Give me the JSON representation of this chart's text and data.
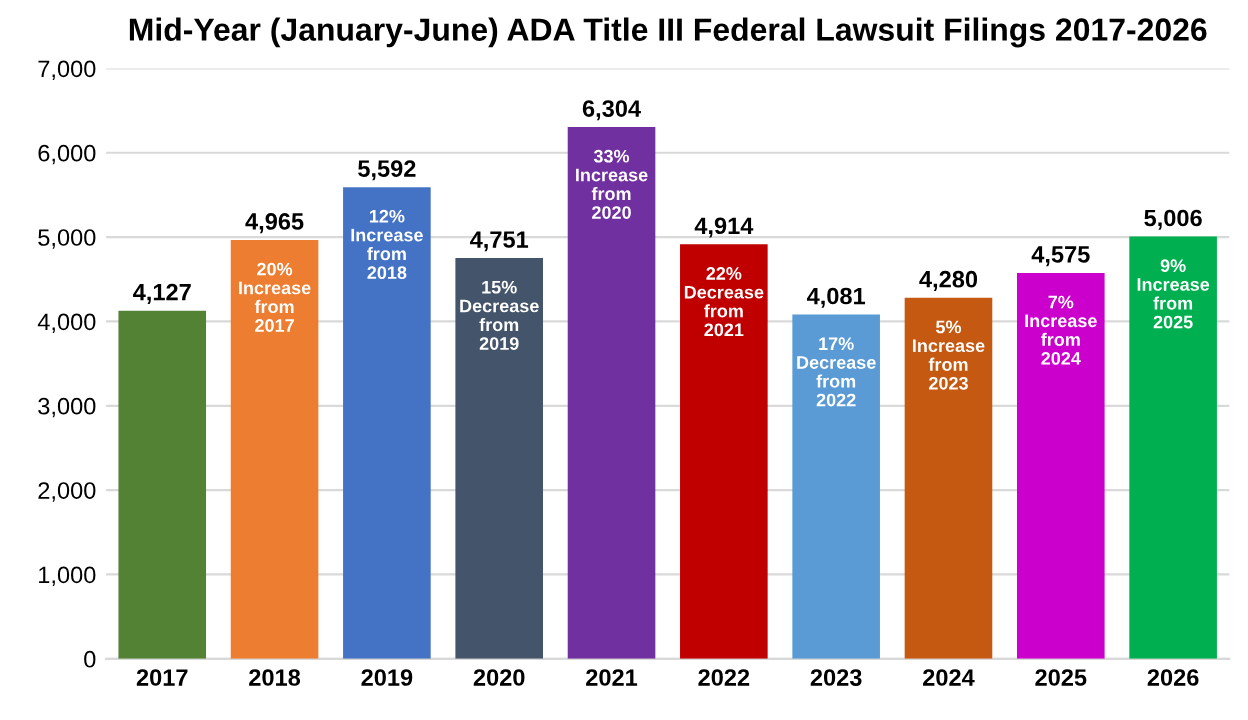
{
  "chart_data": {
    "type": "bar",
    "title": "Mid-Year (January-June) ADA Title III Federal Lawsuit Filings 2017-2026",
    "categories": [
      "2017",
      "2018",
      "2019",
      "2020",
      "2021",
      "2022",
      "2023",
      "2024",
      "2025",
      "2026"
    ],
    "values": [
      4127,
      4965,
      5592,
      4751,
      6304,
      4914,
      4081,
      4280,
      4575,
      5006
    ],
    "colors": [
      "#548235",
      "#ed7d31",
      "#4472c4",
      "#44546a",
      "#7030a0",
      "#c00000",
      "#5b9bd5",
      "#c65911",
      "#cc00cc",
      "#00b050"
    ],
    "value_labels": [
      "4,127",
      "4,965",
      "5,592",
      "4,751",
      "6,304",
      "4,914",
      "4,081",
      "4,280",
      "4,575",
      "5,006"
    ],
    "ylim": [
      0,
      7000
    ],
    "yticks": [
      {
        "value": 0,
        "label": "0"
      },
      {
        "value": 1000,
        "label": "1,000"
      },
      {
        "value": 2000,
        "label": "2,000"
      },
      {
        "value": 3000,
        "label": "3,000"
      },
      {
        "value": 4000,
        "label": "4,000"
      },
      {
        "value": 5000,
        "label": "5,000"
      },
      {
        "value": 6000,
        "label": "6,000"
      },
      {
        "value": 7000,
        "label": "7,000"
      }
    ],
    "grid": "y",
    "annotations": [
      {
        "text": "20%\nIncrease\nfrom\n2017",
        "x": "2018",
        "y": 4965
      },
      {
        "text": "12%\nIncrease\nfrom\n2018",
        "x": "2019",
        "y": 5592
      },
      {
        "text": "15%\nDecrease\nfrom\n2019",
        "x": "2020",
        "y": 4751
      },
      {
        "text": "33%\nIncrease\nfrom\n2020",
        "x": "2021",
        "y": 6304
      },
      {
        "text": "22%\nDecrease\nfrom\n2021",
        "x": "2022",
        "y": 4914
      },
      {
        "text": "17%\nDecrease\nfrom\n2022",
        "x": "2023",
        "y": 4081
      },
      {
        "text": "5%\nIncrease\nfrom\n2023",
        "x": "2024",
        "y": 4280
      },
      {
        "text": "7%\nIncrease\nfrom\n2024",
        "x": "2025",
        "y": 4575
      },
      {
        "text": "9%\nIncrease\nfrom\n2025",
        "x": "2026",
        "y": 5006
      }
    ]
  }
}
